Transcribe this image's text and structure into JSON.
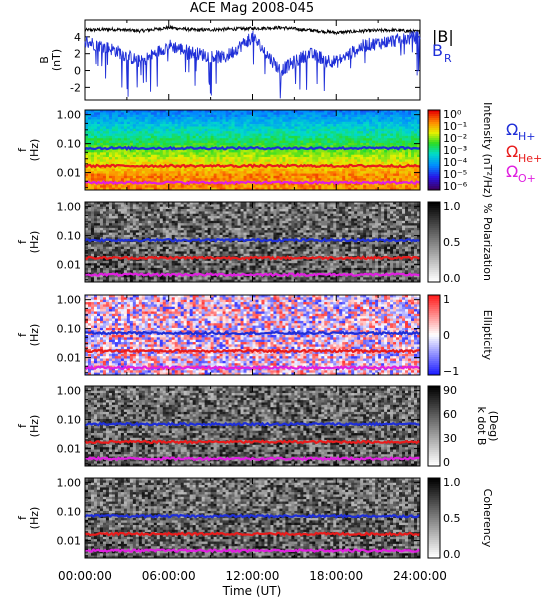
{
  "title": "ACE Mag 2008-045",
  "xlabel": "Time (UT)",
  "x_ticks": [
    "00:00:00",
    "06:00:00",
    "12:00:00",
    "18:00:00",
    "24:00:00"
  ],
  "freq_ticks": [
    "1.00",
    "0.10",
    "0.01"
  ],
  "freq_label": [
    "f",
    "(Hz)"
  ],
  "legend": [
    {
      "text": "|B|",
      "color": "#000000"
    },
    {
      "text": "B",
      "sub": "R",
      "color": "#1f2fd8"
    }
  ],
  "gyro_lines": [
    {
      "name": "ΩH+",
      "symbol": "Ω",
      "sub": "H+",
      "color": "#1f2fd8",
      "freq": 0.07
    },
    {
      "name": "ΩHe+",
      "symbol": "Ω",
      "sub": "He+",
      "color": "#e81c1c",
      "freq": 0.017
    },
    {
      "name": "ΩO+",
      "symbol": "Ω",
      "sub": "O+",
      "color": "#e020e0",
      "freq": 0.0045
    }
  ],
  "colors": {
    "field_total": "#000000",
    "field_radial": "#1f2fd8"
  },
  "chart_data": [
    {
      "type": "line",
      "ylabel": "B (nT)",
      "ylabel_lines": [
        "B",
        "(nT)"
      ],
      "y_ticks": [
        "4",
        "2",
        "0",
        "-2"
      ],
      "ylim": [
        -3.5,
        6.0
      ],
      "xlim": [
        0,
        24
      ],
      "x_unit": "hours UT",
      "series": [
        {
          "name": "|B|",
          "color": "#000000",
          "x": [
            0,
            2,
            4,
            6,
            8,
            10,
            12,
            14,
            16,
            18,
            20,
            22,
            24
          ],
          "values": [
            4.8,
            4.9,
            4.7,
            5.1,
            4.8,
            4.9,
            5.0,
            5.1,
            4.8,
            4.5,
            4.7,
            4.8,
            4.6
          ]
        },
        {
          "name": "B_R",
          "color": "#1f2fd8",
          "x": [
            0,
            2,
            4,
            6,
            8,
            10,
            12,
            14,
            16,
            18,
            20,
            22,
            24
          ],
          "values": [
            3.5,
            2.5,
            1.0,
            3.0,
            2.0,
            1.5,
            4.0,
            0.0,
            2.0,
            1.0,
            3.0,
            3.5,
            4.0
          ]
        }
      ]
    },
    {
      "type": "heatmap",
      "ylabel": "f (Hz)",
      "colorbar_label": "Intensity (nT²/Hz)",
      "colorbar_ticks": [
        "10⁰",
        "10⁻¹",
        "10⁻²",
        "10⁻³",
        "10⁻⁴",
        "10⁻⁵",
        "10⁻⁶"
      ],
      "colorscale": "rainbow",
      "log_y": true
    },
    {
      "type": "heatmap",
      "ylabel": "f (Hz)",
      "colorbar_label": "% Polarization",
      "colorbar_ticks": [
        "1.0",
        "0.5",
        "0.0"
      ],
      "colorscale": "gray",
      "log_y": true
    },
    {
      "type": "heatmap",
      "ylabel": "f (Hz)",
      "colorbar_label": "Ellipticity",
      "colorbar_ticks": [
        "1",
        "0",
        "−1"
      ],
      "colorscale": "bwr",
      "log_y": true
    },
    {
      "type": "heatmap",
      "ylabel": "f (Hz)",
      "colorbar_label": "k dot B (Deg)",
      "colorbar_label_lines": [
        "k dot B",
        "(Deg)"
      ],
      "colorbar_ticks": [
        "90",
        "60",
        "30",
        "0"
      ],
      "colorscale": "gray",
      "log_y": true
    },
    {
      "type": "heatmap",
      "ylabel": "f (Hz)",
      "colorbar_label": "Coherency",
      "colorbar_ticks": [
        "1.0",
        "0.5",
        "0.0"
      ],
      "colorscale": "gray",
      "log_y": true
    }
  ]
}
